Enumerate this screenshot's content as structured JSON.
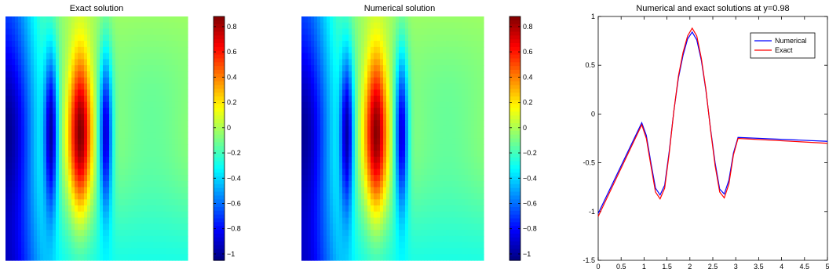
{
  "chart_data": [
    {
      "type": "heatmap",
      "title": "Exact solution",
      "colormap": "jet",
      "xlim": [
        0,
        5
      ],
      "ylim": [
        0,
        1
      ],
      "clim": [
        -1.05,
        0.88
      ],
      "colorbar_ticks": [
        0.8,
        0.6,
        0.4,
        0.2,
        0,
        -0.2,
        -0.4,
        -0.6,
        -0.8,
        -1
      ],
      "colorbar_tick_labels": [
        "0.8",
        "0.6",
        "0.4",
        "0.2",
        "0",
        "−0.2",
        "−0.4",
        "−0.6",
        "−0.8",
        "−1"
      ],
      "grid": false
    },
    {
      "type": "heatmap",
      "title": "Numerical solution",
      "colormap": "jet",
      "xlim": [
        0,
        5
      ],
      "ylim": [
        0,
        1
      ],
      "clim": [
        -1.05,
        0.88
      ],
      "colorbar_ticks": [
        0.8,
        0.6,
        0.4,
        0.2,
        0,
        -0.2,
        -0.4,
        -0.6,
        -0.8,
        -1
      ],
      "colorbar_tick_labels": [
        "0.8",
        "0.6",
        "0.4",
        "0.2",
        "0",
        "−0.2",
        "−0.4",
        "−0.6",
        "−0.8",
        "−1"
      ],
      "grid": false
    },
    {
      "type": "line",
      "title": "Numerical and exact solutions at y=0.98",
      "xlabel": "",
      "ylabel": "",
      "xlim": [
        0,
        5
      ],
      "ylim": [
        -1.5,
        1
      ],
      "xticks": [
        0,
        0.5,
        1,
        1.5,
        2,
        2.5,
        3,
        3.5,
        4,
        4.5,
        5
      ],
      "xtick_labels": [
        "0",
        "0.5",
        "1",
        "1.5",
        "2",
        "2.5",
        "3",
        "3.5",
        "4",
        "4.5",
        "5"
      ],
      "yticks": [
        1,
        0.5,
        0,
        -0.5,
        -1,
        -1.5
      ],
      "ytick_labels": [
        "1",
        "0.5",
        "0",
        "-0.5",
        "-1",
        "-1.5"
      ],
      "legend_position": "top-right",
      "grid": false,
      "series": [
        {
          "name": "Numerical",
          "color": "#0000ff",
          "x": [
            0,
            0.95,
            1.05,
            1.15,
            1.25,
            1.35,
            1.45,
            1.55,
            1.65,
            1.75,
            1.85,
            1.95,
            2.05,
            2.15,
            2.25,
            2.35,
            2.45,
            2.55,
            2.65,
            2.75,
            2.85,
            2.95,
            3.05,
            5
          ],
          "y": [
            -1.02,
            -0.09,
            -0.22,
            -0.5,
            -0.76,
            -0.83,
            -0.73,
            -0.38,
            0.03,
            0.37,
            0.6,
            0.77,
            0.84,
            0.76,
            0.55,
            0.24,
            -0.15,
            -0.5,
            -0.77,
            -0.82,
            -0.68,
            -0.4,
            -0.24,
            -0.28
          ]
        },
        {
          "name": "Exact",
          "color": "#ff0000",
          "x": [
            0,
            0.95,
            1.05,
            1.15,
            1.25,
            1.35,
            1.45,
            1.55,
            1.65,
            1.75,
            1.85,
            1.95,
            2.05,
            2.15,
            2.25,
            2.35,
            2.45,
            2.55,
            2.65,
            2.75,
            2.85,
            2.95,
            3.05,
            5
          ],
          "y": [
            -1.05,
            -0.11,
            -0.25,
            -0.53,
            -0.8,
            -0.87,
            -0.76,
            -0.4,
            0.03,
            0.39,
            0.63,
            0.8,
            0.88,
            0.8,
            0.57,
            0.25,
            -0.16,
            -0.53,
            -0.8,
            -0.86,
            -0.72,
            -0.42,
            -0.25,
            -0.3
          ]
        }
      ]
    }
  ]
}
